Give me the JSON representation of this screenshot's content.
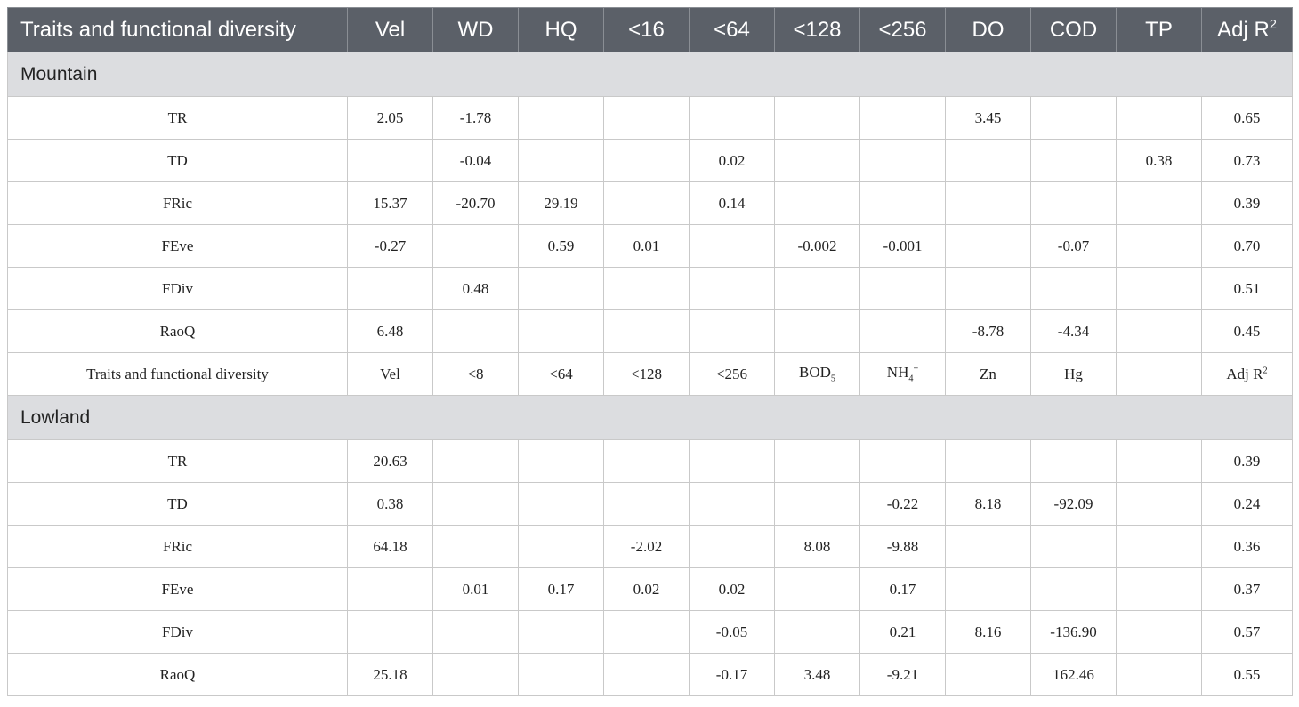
{
  "table": {
    "sections": [
      {
        "header": [
          "Traits and functional diversity",
          "Vel",
          "WD",
          "HQ",
          "<16",
          "<64",
          "<128",
          "<256",
          "DO",
          "COD",
          "TP",
          {
            "base": "Adj R",
            "sup": "2"
          }
        ],
        "title": "Mountain",
        "rows": [
          [
            "TR",
            "2.05",
            "-1.78",
            null,
            null,
            null,
            null,
            null,
            "3.45",
            null,
            null,
            "0.65"
          ],
          [
            "TD",
            null,
            "-0.04",
            null,
            null,
            "0.02",
            null,
            null,
            null,
            null,
            "0.38",
            "0.73"
          ],
          [
            "FRic",
            "15.37",
            "-20.70",
            "29.19",
            null,
            "0.14",
            null,
            null,
            null,
            null,
            null,
            "0.39"
          ],
          [
            "FEve",
            "-0.27",
            null,
            "0.59",
            "0.01",
            null,
            "-0.002",
            "-0.001",
            null,
            "-0.07",
            null,
            "0.70"
          ],
          [
            "FDiv",
            null,
            "0.48",
            null,
            null,
            null,
            null,
            null,
            null,
            null,
            null,
            "0.51"
          ],
          [
            "RaoQ",
            "6.48",
            null,
            null,
            null,
            null,
            null,
            null,
            "-8.78",
            "-4.34",
            null,
            "0.45"
          ]
        ]
      },
      {
        "header": [
          "Traits and functional diversity",
          "Vel",
          "<8",
          "<64",
          "<128",
          "<256",
          {
            "base": "BOD",
            "sub": "5"
          },
          {
            "base": "NH",
            "sub": "4",
            "sup": "+"
          },
          "Zn",
          "Hg",
          null,
          {
            "base": "Adj R",
            "sup": "2"
          }
        ],
        "title": "Lowland",
        "rows": [
          [
            "TR",
            "20.63",
            null,
            null,
            null,
            null,
            null,
            null,
            null,
            null,
            null,
            "0.39"
          ],
          [
            "TD",
            "0.38",
            null,
            null,
            null,
            null,
            null,
            "-0.22",
            "8.18",
            "-92.09",
            null,
            "0.24"
          ],
          [
            "FRic",
            "64.18",
            null,
            null,
            "-2.02",
            null,
            "8.08",
            "-9.88",
            null,
            null,
            null,
            "0.36"
          ],
          [
            "FEve",
            null,
            "0.01",
            "0.17",
            "0.02",
            "0.02",
            null,
            "0.17",
            null,
            null,
            null,
            "0.37"
          ],
          [
            "FDiv",
            null,
            null,
            null,
            null,
            "-0.05",
            null,
            "0.21",
            "8.16",
            "-136.90",
            null,
            "0.57"
          ],
          [
            "RaoQ",
            "25.18",
            null,
            null,
            null,
            "-0.17",
            "3.48",
            "-9.21",
            null,
            "162.46",
            null,
            "0.55"
          ]
        ]
      }
    ]
  }
}
